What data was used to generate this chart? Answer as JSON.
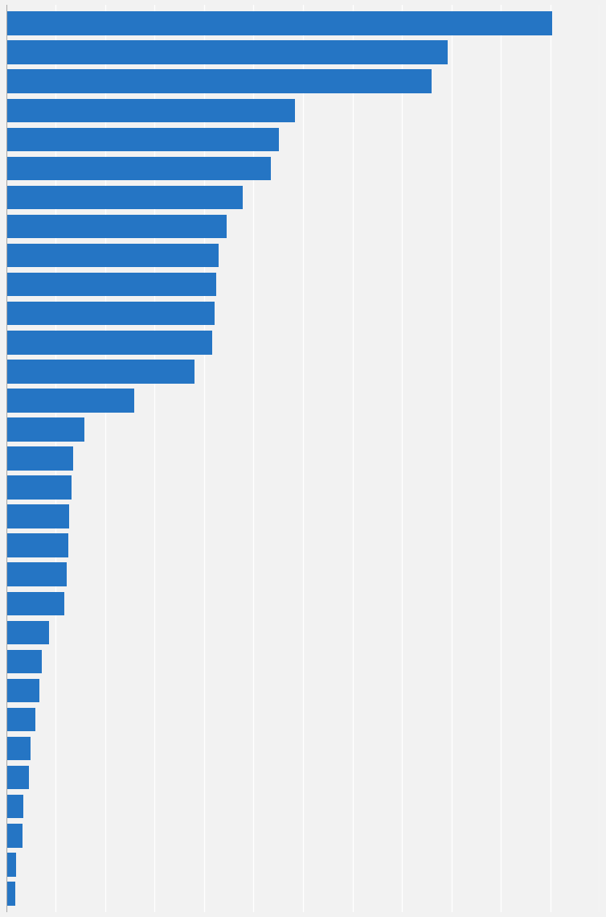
{
  "values": [
    6800,
    5500,
    5300,
    3600,
    3400,
    3300,
    2950,
    2750,
    2650,
    2620,
    2600,
    2570,
    2350,
    1600,
    980,
    840,
    820,
    790,
    780,
    760,
    730,
    540,
    450,
    420,
    365,
    310,
    290,
    215,
    200,
    125,
    110
  ],
  "bar_color": "#2575C4",
  "background_color": "#f2f2f2",
  "grid_color": "#ffffff",
  "bar_height": 0.82,
  "xlim": [
    0,
    7400
  ]
}
